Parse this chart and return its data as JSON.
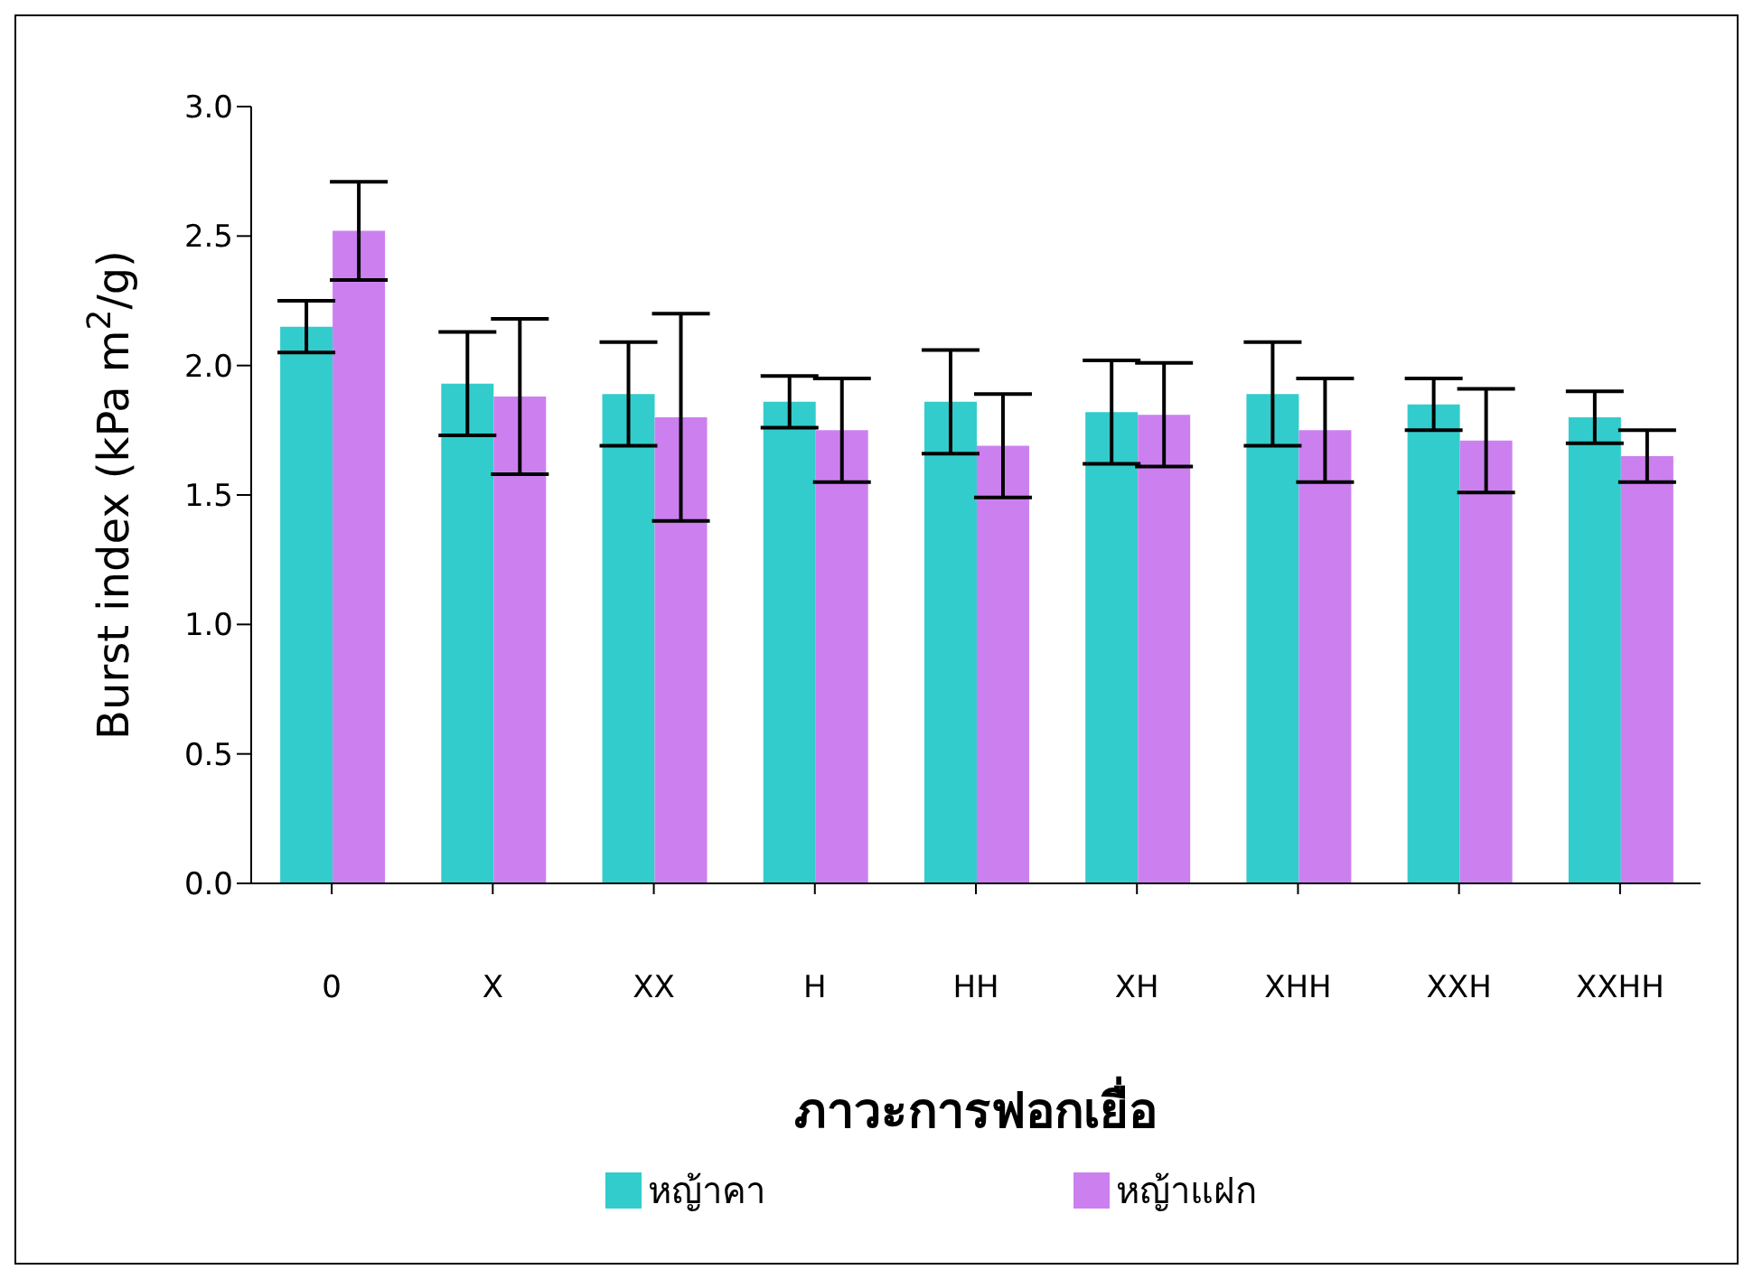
{
  "chart_data": {
    "type": "bar",
    "xlabel": "ภาวะการฟอกเยื่อ",
    "ylabel": "Burst index (kPa m$^{2}$/g)",
    "categories": [
      "0",
      "X",
      "XX",
      "H",
      "HH",
      "XH",
      "XHH",
      "XXH",
      "XXHH"
    ],
    "series": [
      {
        "name": "หญ้าคา",
        "color": "#33cccc",
        "values": [
          2.15,
          1.93,
          1.89,
          1.86,
          1.86,
          1.82,
          1.89,
          1.85,
          1.8
        ],
        "errors": [
          0.1,
          0.2,
          0.2,
          0.1,
          0.2,
          0.2,
          0.2,
          0.1,
          0.1
        ]
      },
      {
        "name": "หญ้าแฝก",
        "color": "#cc80f0",
        "values": [
          2.52,
          1.88,
          1.8,
          1.75,
          1.69,
          1.81,
          1.75,
          1.71,
          1.65
        ],
        "errors": [
          0.19,
          0.3,
          0.4,
          0.2,
          0.2,
          0.2,
          0.2,
          0.2,
          0.1
        ]
      }
    ],
    "ylim": [
      0,
      3
    ],
    "yticks": [
      {
        "value": 0,
        "label": "0.0"
      },
      {
        "value": 0.5,
        "label": "0.5"
      },
      {
        "value": 1,
        "label": "1.0"
      },
      {
        "value": 1.5,
        "label": "1.5"
      },
      {
        "value": 2,
        "label": "2.0"
      },
      {
        "value": 2.5,
        "label": "2.5"
      },
      {
        "value": 3,
        "label": "3.0"
      }
    ],
    "grid": false,
    "legend": "bottom"
  }
}
